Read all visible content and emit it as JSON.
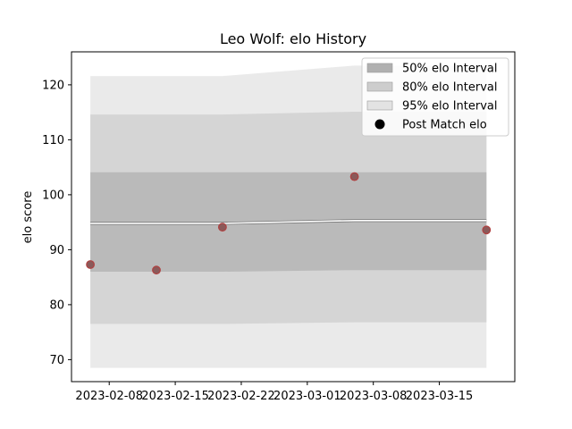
{
  "chart_data": {
    "type": "line",
    "title": "Leo Wolf: elo History",
    "xlabel": "",
    "ylabel": "elo score",
    "xlim": [
      "2023-02-04",
      "2023-03-23"
    ],
    "ylim": [
      66,
      126
    ],
    "x_ticks": [
      "2023-02-08",
      "2023-02-15",
      "2023-02-22",
      "2023-03-01",
      "2023-03-08",
      "2023-03-15"
    ],
    "y_ticks": [
      70,
      80,
      90,
      100,
      110,
      120
    ],
    "grid": false,
    "legend_position": "top-right",
    "band_dates": [
      "2023-02-06",
      "2023-02-20",
      "2023-03-06",
      "2023-03-20"
    ],
    "mean": [
      94.8,
      94.8,
      95.3,
      95.3
    ],
    "series": [
      {
        "name": "50% elo Interval",
        "color": "#b0b0b0",
        "lower": [
          86.0,
          86.0,
          86.3,
          86.3
        ],
        "upper": [
          104.1,
          104.1,
          104.1,
          104.1
        ]
      },
      {
        "name": "80% elo Interval",
        "color": "#cdcdcd",
        "lower": [
          76.5,
          76.5,
          76.8,
          76.8
        ],
        "upper": [
          114.6,
          114.6,
          115.1,
          115.1
        ]
      },
      {
        "name": "95% elo Interval",
        "color": "#e3e3e3",
        "lower": [
          68.5,
          68.5,
          68.5,
          68.5
        ],
        "upper": [
          121.6,
          121.6,
          123.5,
          123.5
        ]
      },
      {
        "name": "Post Match elo",
        "type": "scatter",
        "color": "#b04040",
        "points": [
          {
            "x": "2023-02-06",
            "y": 87.3
          },
          {
            "x": "2023-02-13",
            "y": 86.3
          },
          {
            "x": "2023-02-20",
            "y": 94.1
          },
          {
            "x": "2023-03-06",
            "y": 103.3
          },
          {
            "x": "2023-03-20",
            "y": 93.6
          }
        ]
      }
    ]
  }
}
